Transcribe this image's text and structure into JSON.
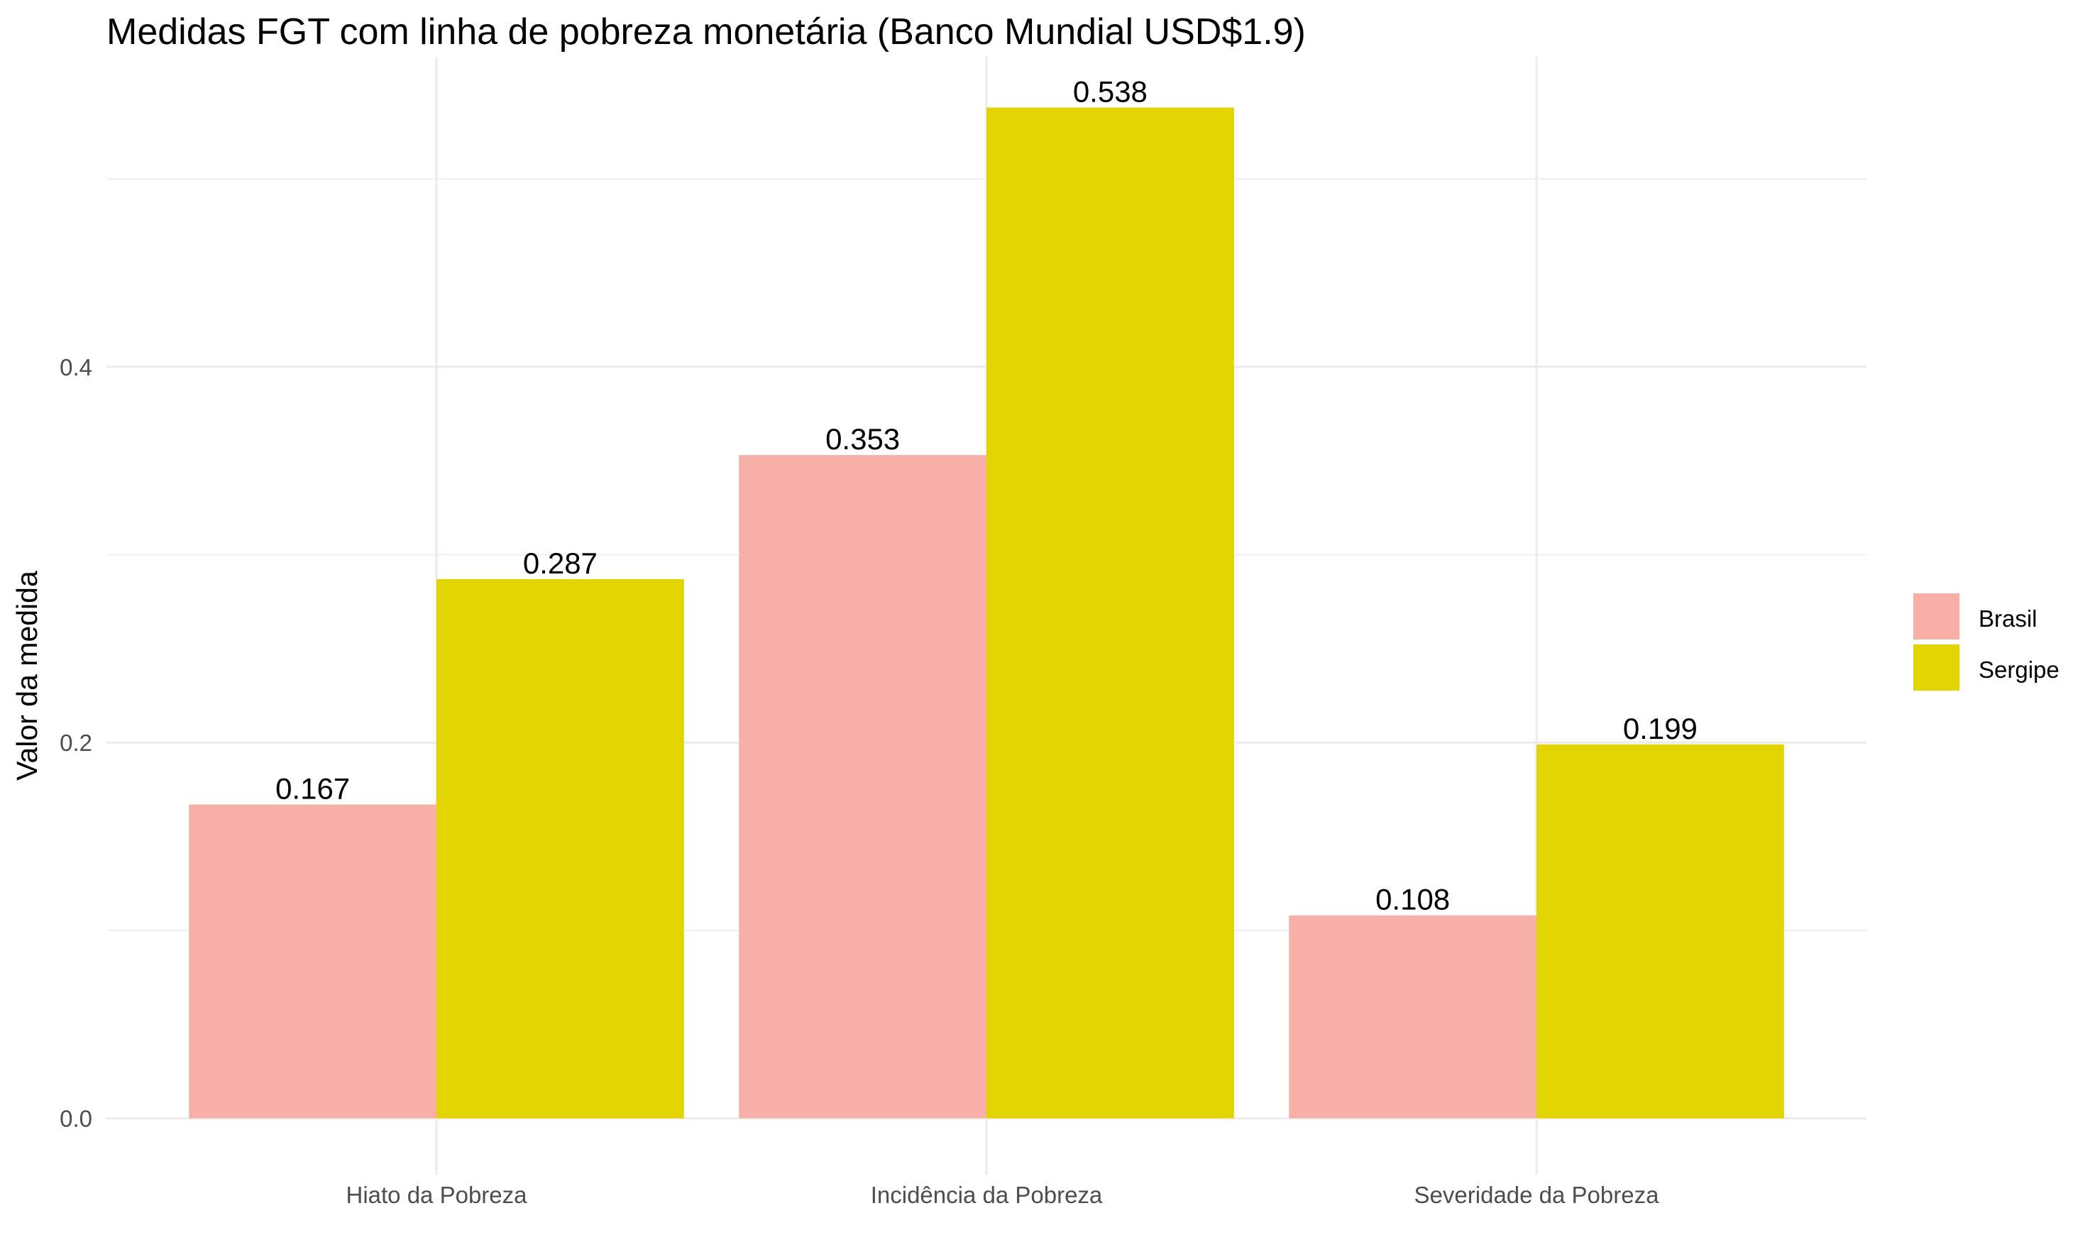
{
  "chart_data": {
    "type": "bar",
    "title": "Medidas FGT com linha de pobreza monetária (Banco Mundial USD$1.9)",
    "xlabel": "",
    "ylabel": "Valor da medida",
    "categories": [
      "Hiato da Pobreza",
      "Incidência da Pobreza",
      "Severidade da Pobreza"
    ],
    "series": [
      {
        "name": "Brasil",
        "values": [
          0.167,
          0.353,
          0.108
        ],
        "labels": [
          "0.167",
          "0.353",
          "0.108"
        ],
        "color": "#F8AFA8"
      },
      {
        "name": "Sergipe",
        "values": [
          0.287,
          0.538,
          0.199
        ],
        "labels": [
          "0.287",
          "0.538",
          "0.199"
        ],
        "color": "#E1D400"
      }
    ],
    "ylim": [
      -0.03,
      0.565
    ],
    "yticks": [
      0.0,
      0.2,
      0.4
    ],
    "ytick_labels": [
      "0.0",
      "0.2",
      "0.4"
    ],
    "grid": true,
    "legend_position": "right"
  }
}
